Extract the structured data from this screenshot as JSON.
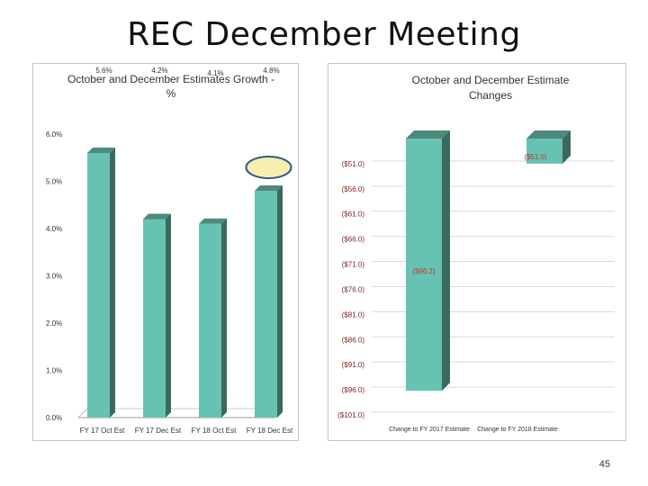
{
  "slide": {
    "title": "REC December Meeting",
    "page_number": "45"
  },
  "colors": {
    "bar_face": "#68c2b3",
    "bar_side": "#3a6a5e",
    "bar_top": "#4d8a7c",
    "neg_label": "#c0392b",
    "grid": "#d9d9d9",
    "highlight_fill": "#f7efb0",
    "highlight_stroke": "#2e5a85"
  },
  "chart_data": [
    {
      "type": "bar",
      "title": "October and December Estimates Growth - %",
      "categories": [
        "FY 17 Oct Est",
        "FY 17 Dec Est",
        "FY 18 Oct Est",
        "FY 18 Dec Est"
      ],
      "values": [
        5.6,
        4.2,
        4.1,
        4.8
      ],
      "data_labels": [
        "5.6%",
        "4.2%",
        "4.1%",
        "4.8%"
      ],
      "ylim": [
        0,
        6
      ],
      "yticks": [
        "0.0%",
        "1.0%",
        "2.0%",
        "3.0%",
        "4.0%",
        "5.0%",
        "6.0%"
      ],
      "grid": false,
      "highlighted_category": "FY 18 Dec Est"
    },
    {
      "type": "bar",
      "title": "October and December Estimate Changes",
      "categories": [
        "Change to FY 2017 Estimate",
        "Change to FY 2018 Estimate"
      ],
      "values": [
        -96.2,
        -51.0
      ],
      "data_labels": [
        "($96.2)",
        "($51.0)"
      ],
      "ylim": [
        -101,
        -46
      ],
      "yticks": [
        "($51.0)",
        "($56.0)",
        "($61.0)",
        "($66.0)",
        "($71.0)",
        "($76.0)",
        "($81.0)",
        "($86.0)",
        "($91.0)",
        "($96.0)",
        "($101.0)"
      ],
      "grid": true
    }
  ]
}
